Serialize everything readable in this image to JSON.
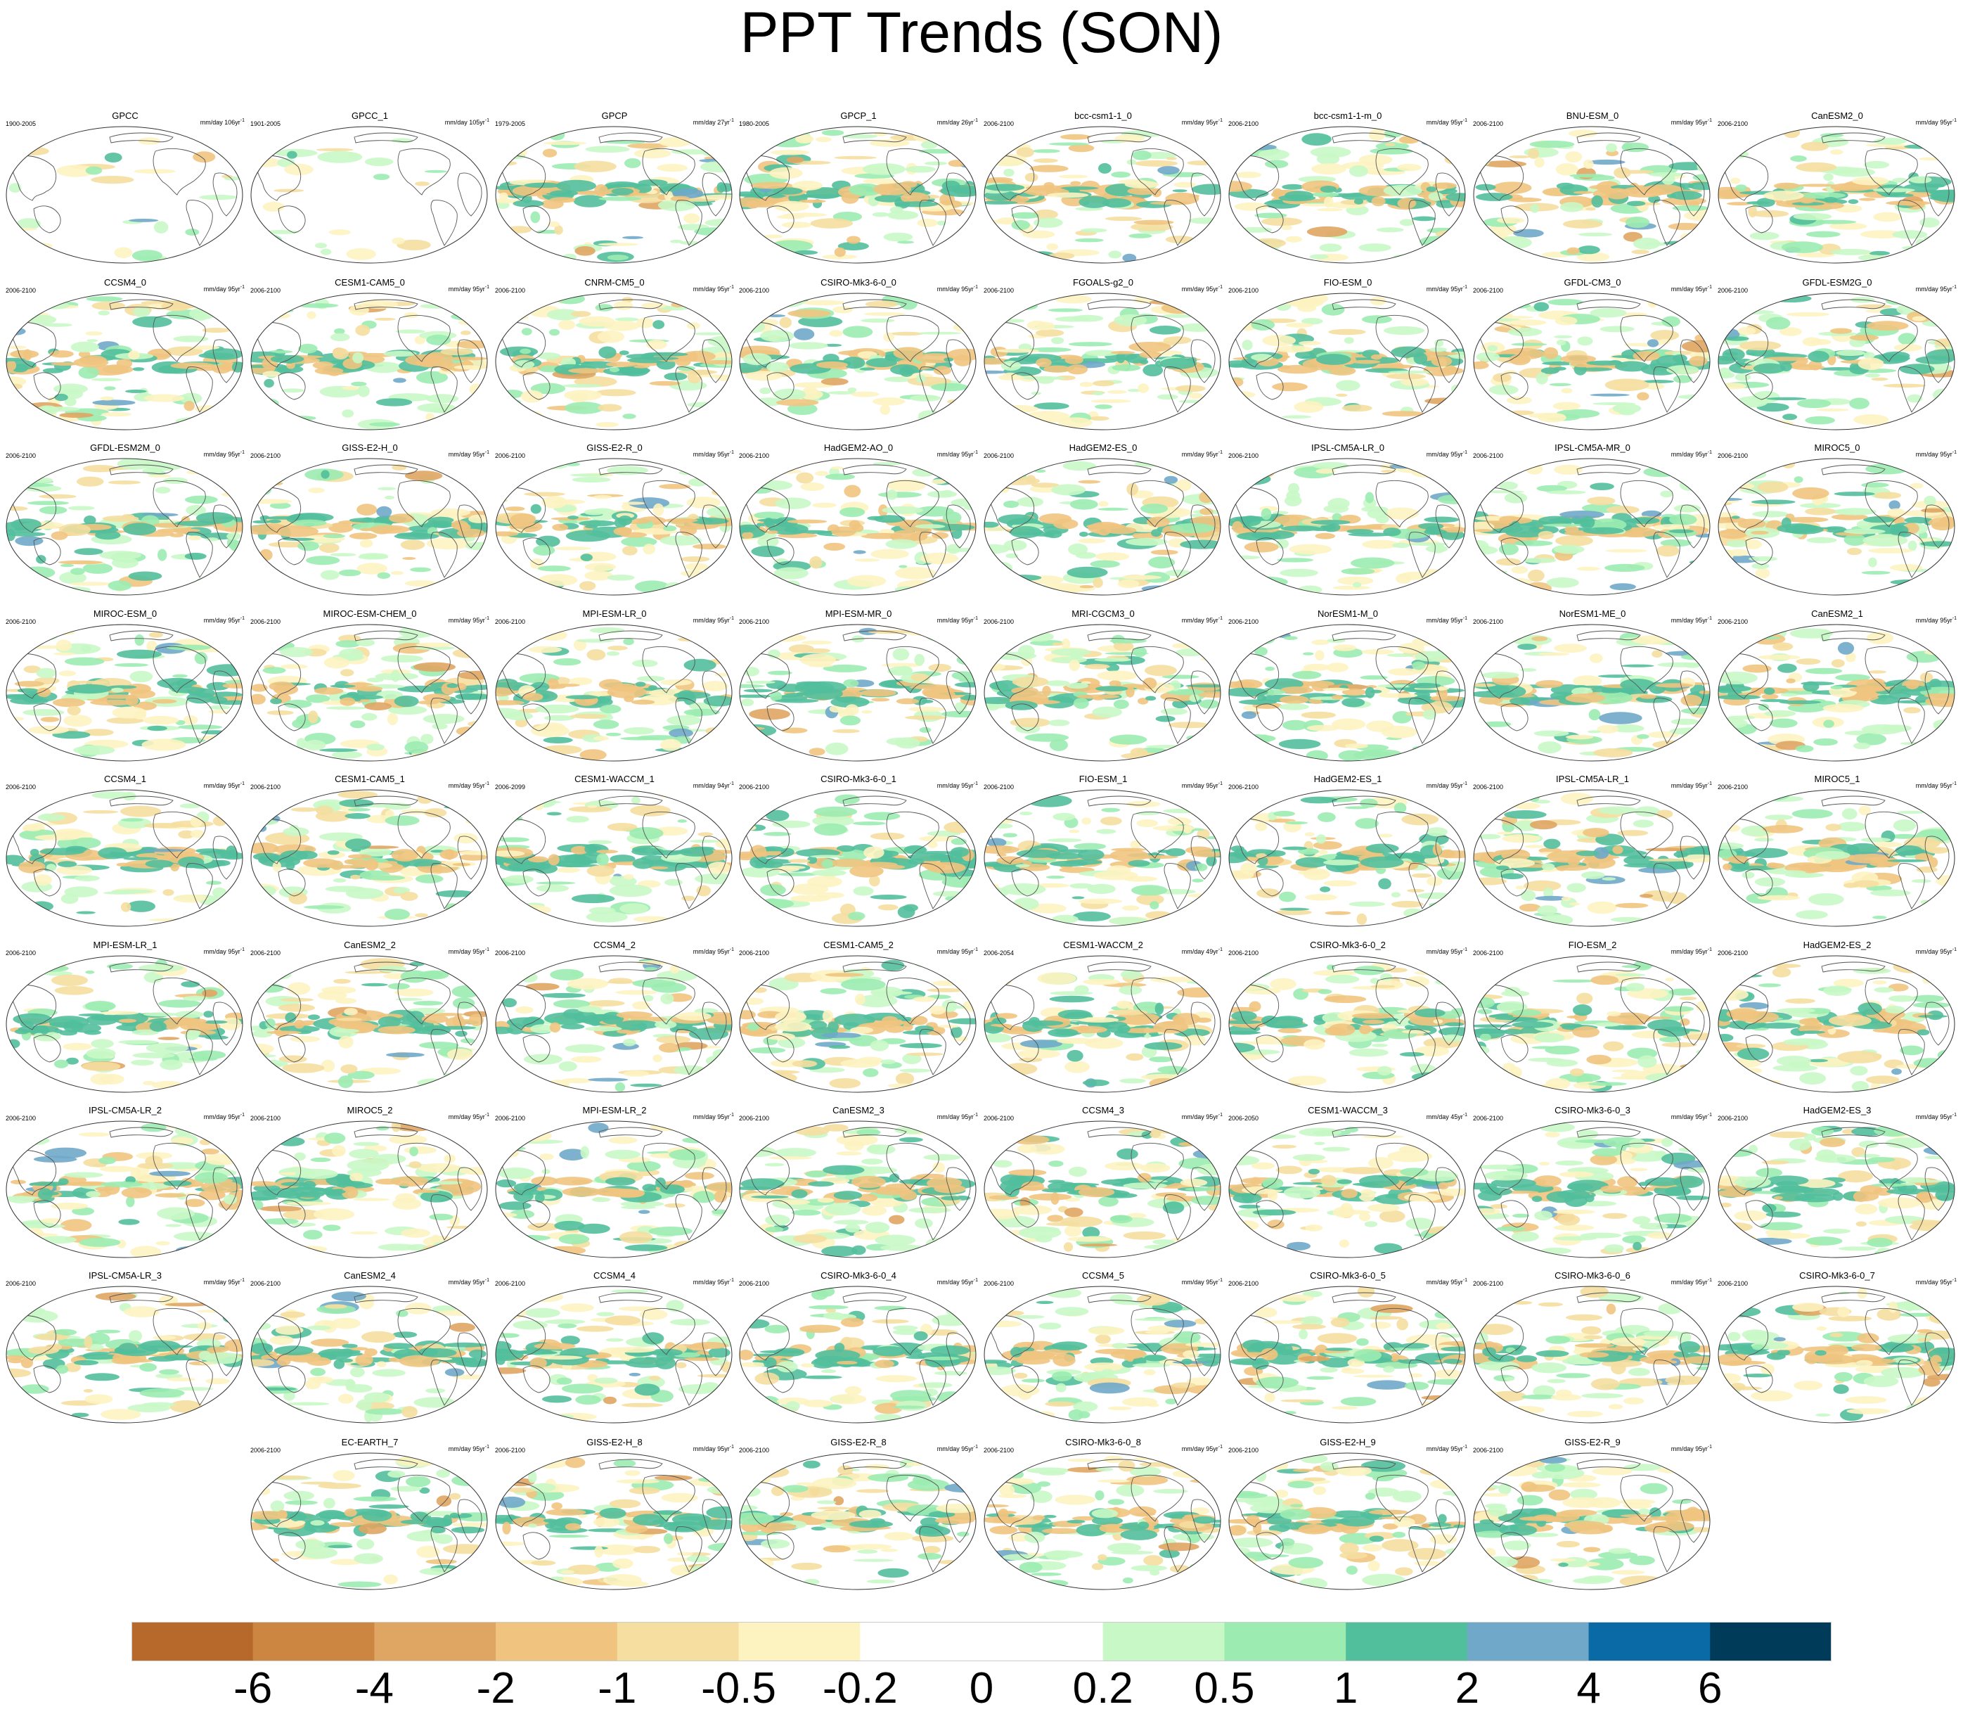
{
  "title": "PPT Trends (SON)",
  "colorbar": {
    "labels": [
      "-6",
      "-4",
      "-2",
      "-1",
      "-0.5",
      "-0.2",
      "0",
      "0.2",
      "0.5",
      "1",
      "2",
      "4",
      "6"
    ],
    "colors": [
      "#b7692c",
      "#cd8642",
      "#dfa563",
      "#f0c47f",
      "#f5dea0",
      "#fdf3c1",
      "#ffffff",
      "#ffffff",
      "#c9f8c7",
      "#9cecb1",
      "#52bf9c",
      "#6fa8c9",
      "#0a6aa6",
      "#003b5a"
    ]
  },
  "panels": [
    {
      "title": "GPCC",
      "period": "1900-2005",
      "unit": "mm/day 106yr",
      "row": 0,
      "col": 0,
      "land_only": true
    },
    {
      "title": "GPCC_1",
      "period": "1901-2005",
      "unit": "mm/day 105yr",
      "row": 0,
      "col": 1,
      "land_only": true
    },
    {
      "title": "GPCP",
      "period": "1979-2005",
      "unit": "mm/day 27yr",
      "row": 0,
      "col": 2
    },
    {
      "title": "GPCP_1",
      "period": "1980-2005",
      "unit": "mm/day 26yr",
      "row": 0,
      "col": 3
    },
    {
      "title": "bcc-csm1-1_0",
      "period": "2006-2100",
      "unit": "mm/day 95yr",
      "row": 0,
      "col": 4
    },
    {
      "title": "bcc-csm1-1-m_0",
      "period": "2006-2100",
      "unit": "mm/day 95yr",
      "row": 0,
      "col": 5
    },
    {
      "title": "BNU-ESM_0",
      "period": "2006-2100",
      "unit": "mm/day 95yr",
      "row": 0,
      "col": 6
    },
    {
      "title": "CanESM2_0",
      "period": "2006-2100",
      "unit": "mm/day 95yr",
      "row": 0,
      "col": 7
    },
    {
      "title": "CCSM4_0",
      "period": "2006-2100",
      "unit": "mm/day 95yr",
      "row": 1,
      "col": 0
    },
    {
      "title": "CESM1-CAM5_0",
      "period": "2006-2100",
      "unit": "mm/day 95yr",
      "row": 1,
      "col": 1
    },
    {
      "title": "CNRM-CM5_0",
      "period": "2006-2100",
      "unit": "mm/day 95yr",
      "row": 1,
      "col": 2
    },
    {
      "title": "CSIRO-Mk3-6-0_0",
      "period": "2006-2100",
      "unit": "mm/day 95yr",
      "row": 1,
      "col": 3
    },
    {
      "title": "FGOALS-g2_0",
      "period": "2006-2100",
      "unit": "mm/day 95yr",
      "row": 1,
      "col": 4
    },
    {
      "title": "FIO-ESM_0",
      "period": "2006-2100",
      "unit": "mm/day 95yr",
      "row": 1,
      "col": 5
    },
    {
      "title": "GFDL-CM3_0",
      "period": "2006-2100",
      "unit": "mm/day 95yr",
      "row": 1,
      "col": 6
    },
    {
      "title": "GFDL-ESM2G_0",
      "period": "2006-2100",
      "unit": "mm/day 95yr",
      "row": 1,
      "col": 7
    },
    {
      "title": "GFDL-ESM2M_0",
      "period": "2006-2100",
      "unit": "mm/day 95yr",
      "row": 2,
      "col": 0
    },
    {
      "title": "GISS-E2-H_0",
      "period": "2006-2100",
      "unit": "mm/day 95yr",
      "row": 2,
      "col": 1
    },
    {
      "title": "GISS-E2-R_0",
      "period": "2006-2100",
      "unit": "mm/day 95yr",
      "row": 2,
      "col": 2
    },
    {
      "title": "HadGEM2-AO_0",
      "period": "2006-2100",
      "unit": "mm/day 95yr",
      "row": 2,
      "col": 3
    },
    {
      "title": "HadGEM2-ES_0",
      "period": "2006-2100",
      "unit": "mm/day 95yr",
      "row": 2,
      "col": 4
    },
    {
      "title": "IPSL-CM5A-LR_0",
      "period": "2006-2100",
      "unit": "mm/day 95yr",
      "row": 2,
      "col": 5
    },
    {
      "title": "IPSL-CM5A-MR_0",
      "period": "2006-2100",
      "unit": "mm/day 95yr",
      "row": 2,
      "col": 6
    },
    {
      "title": "MIROC5_0",
      "period": "2006-2100",
      "unit": "mm/day 95yr",
      "row": 2,
      "col": 7
    },
    {
      "title": "MIROC-ESM_0",
      "period": "2006-2100",
      "unit": "mm/day 95yr",
      "row": 3,
      "col": 0
    },
    {
      "title": "MIROC-ESM-CHEM_0",
      "period": "2006-2100",
      "unit": "mm/day 95yr",
      "row": 3,
      "col": 1
    },
    {
      "title": "MPI-ESM-LR_0",
      "period": "2006-2100",
      "unit": "mm/day 95yr",
      "row": 3,
      "col": 2
    },
    {
      "title": "MPI-ESM-MR_0",
      "period": "2006-2100",
      "unit": "mm/day 95yr",
      "row": 3,
      "col": 3
    },
    {
      "title": "MRI-CGCM3_0",
      "period": "2006-2100",
      "unit": "mm/day 95yr",
      "row": 3,
      "col": 4
    },
    {
      "title": "NorESM1-M_0",
      "period": "2006-2100",
      "unit": "mm/day 95yr",
      "row": 3,
      "col": 5
    },
    {
      "title": "NorESM1-ME_0",
      "period": "2006-2100",
      "unit": "mm/day 95yr",
      "row": 3,
      "col": 6
    },
    {
      "title": "CanESM2_1",
      "period": "2006-2100",
      "unit": "mm/day 95yr",
      "row": 3,
      "col": 7
    },
    {
      "title": "CCSM4_1",
      "period": "2006-2100",
      "unit": "mm/day 95yr",
      "row": 4,
      "col": 0
    },
    {
      "title": "CESM1-CAM5_1",
      "period": "2006-2100",
      "unit": "mm/day 95yr",
      "row": 4,
      "col": 1
    },
    {
      "title": "CESM1-WACCM_1",
      "period": "2006-2099",
      "unit": "mm/day 94yr",
      "row": 4,
      "col": 2
    },
    {
      "title": "CSIRO-Mk3-6-0_1",
      "period": "2006-2100",
      "unit": "mm/day 95yr",
      "row": 4,
      "col": 3
    },
    {
      "title": "FIO-ESM_1",
      "period": "2006-2100",
      "unit": "mm/day 95yr",
      "row": 4,
      "col": 4
    },
    {
      "title": "HadGEM2-ES_1",
      "period": "2006-2100",
      "unit": "mm/day 95yr",
      "row": 4,
      "col": 5
    },
    {
      "title": "IPSL-CM5A-LR_1",
      "period": "2006-2100",
      "unit": "mm/day 95yr",
      "row": 4,
      "col": 6
    },
    {
      "title": "MIROC5_1",
      "period": "2006-2100",
      "unit": "mm/day 95yr",
      "row": 4,
      "col": 7
    },
    {
      "title": "MPI-ESM-LR_1",
      "period": "2006-2100",
      "unit": "mm/day 95yr",
      "row": 5,
      "col": 0
    },
    {
      "title": "CanESM2_2",
      "period": "2006-2100",
      "unit": "mm/day 95yr",
      "row": 5,
      "col": 1
    },
    {
      "title": "CCSM4_2",
      "period": "2006-2100",
      "unit": "mm/day 95yr",
      "row": 5,
      "col": 2
    },
    {
      "title": "CESM1-CAM5_2",
      "period": "2006-2100",
      "unit": "mm/day 95yr",
      "row": 5,
      "col": 3
    },
    {
      "title": "CESM1-WACCM_2",
      "period": "2006-2054",
      "unit": "mm/day 49yr",
      "row": 5,
      "col": 4
    },
    {
      "title": "CSIRO-Mk3-6-0_2",
      "period": "2006-2100",
      "unit": "mm/day 95yr",
      "row": 5,
      "col": 5
    },
    {
      "title": "FIO-ESM_2",
      "period": "2006-2100",
      "unit": "mm/day 95yr",
      "row": 5,
      "col": 6
    },
    {
      "title": "HadGEM2-ES_2",
      "period": "2006-2100",
      "unit": "mm/day 95yr",
      "row": 5,
      "col": 7
    },
    {
      "title": "IPSL-CM5A-LR_2",
      "period": "2006-2100",
      "unit": "mm/day 95yr",
      "row": 6,
      "col": 0
    },
    {
      "title": "MIROC5_2",
      "period": "2006-2100",
      "unit": "mm/day 95yr",
      "row": 6,
      "col": 1
    },
    {
      "title": "MPI-ESM-LR_2",
      "period": "2006-2100",
      "unit": "mm/day 95yr",
      "row": 6,
      "col": 2
    },
    {
      "title": "CanESM2_3",
      "period": "2006-2100",
      "unit": "mm/day 95yr",
      "row": 6,
      "col": 3
    },
    {
      "title": "CCSM4_3",
      "period": "2006-2100",
      "unit": "mm/day 95yr",
      "row": 6,
      "col": 4
    },
    {
      "title": "CESM1-WACCM_3",
      "period": "2006-2050",
      "unit": "mm/day 45yr",
      "row": 6,
      "col": 5
    },
    {
      "title": "CSIRO-Mk3-6-0_3",
      "period": "2006-2100",
      "unit": "mm/day 95yr",
      "row": 6,
      "col": 6
    },
    {
      "title": "HadGEM2-ES_3",
      "period": "2006-2100",
      "unit": "mm/day 95yr",
      "row": 6,
      "col": 7
    },
    {
      "title": "IPSL-CM5A-LR_3",
      "period": "2006-2100",
      "unit": "mm/day 95yr",
      "row": 7,
      "col": 0
    },
    {
      "title": "CanESM2_4",
      "period": "2006-2100",
      "unit": "mm/day 95yr",
      "row": 7,
      "col": 1
    },
    {
      "title": "CCSM4_4",
      "period": "2006-2100",
      "unit": "mm/day 95yr",
      "row": 7,
      "col": 2
    },
    {
      "title": "CSIRO-Mk3-6-0_4",
      "period": "2006-2100",
      "unit": "mm/day 95yr",
      "row": 7,
      "col": 3
    },
    {
      "title": "CCSM4_5",
      "period": "2006-2100",
      "unit": "mm/day 95yr",
      "row": 7,
      "col": 4
    },
    {
      "title": "CSIRO-Mk3-6-0_5",
      "period": "2006-2100",
      "unit": "mm/day 95yr",
      "row": 7,
      "col": 5
    },
    {
      "title": "CSIRO-Mk3-6-0_6",
      "period": "2006-2100",
      "unit": "mm/day 95yr",
      "row": 7,
      "col": 6
    },
    {
      "title": "CSIRO-Mk3-6-0_7",
      "period": "2006-2100",
      "unit": "mm/day 95yr",
      "row": 7,
      "col": 7
    },
    {
      "title": "EC-EARTH_7",
      "period": "2006-2100",
      "unit": "mm/day 95yr",
      "row": 8,
      "col": 1
    },
    {
      "title": "GISS-E2-H_8",
      "period": "2006-2100",
      "unit": "mm/day 95yr",
      "row": 8,
      "col": 2
    },
    {
      "title": "GISS-E2-R_8",
      "period": "2006-2100",
      "unit": "mm/day 95yr",
      "row": 8,
      "col": 3
    },
    {
      "title": "CSIRO-Mk3-6-0_8",
      "period": "2006-2100",
      "unit": "mm/day 95yr",
      "row": 8,
      "col": 4
    },
    {
      "title": "GISS-E2-H_9",
      "period": "2006-2100",
      "unit": "mm/day 95yr",
      "row": 8,
      "col": 5
    },
    {
      "title": "GISS-E2-R_9",
      "period": "2006-2100",
      "unit": "mm/day 95yr",
      "row": 8,
      "col": 6
    }
  ]
}
